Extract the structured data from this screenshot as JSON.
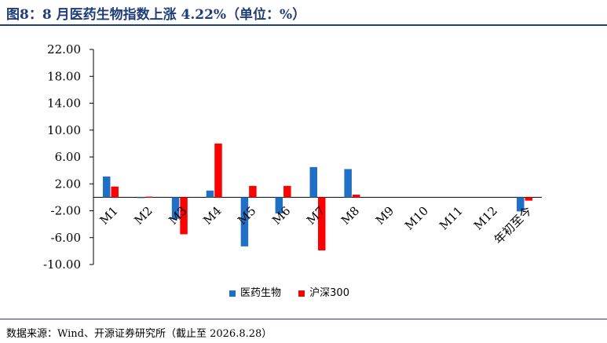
{
  "header": {
    "title": "图8：8 月医药生物指数上涨 4.22%（单位：%）"
  },
  "footer": {
    "source": "数据来源：Wind、开源证券研究所（截止至 2026.8.28）"
  },
  "chart_data": {
    "type": "bar",
    "categories": [
      "M1",
      "M2",
      "M3",
      "M4",
      "M5",
      "M6",
      "M7",
      "M8",
      "M9",
      "M10",
      "M11",
      "M12",
      "年初至今"
    ],
    "series": [
      {
        "name": "医药生物",
        "color": "#1f6fc5",
        "values": [
          3.1,
          -0.1,
          -3.2,
          1.0,
          -7.3,
          -2.4,
          4.5,
          4.2,
          null,
          null,
          null,
          null,
          -2.1
        ]
      },
      {
        "name": "沪深300",
        "color": "#ff0000",
        "values": [
          1.6,
          0.1,
          -5.5,
          8.0,
          1.7,
          1.7,
          -7.9,
          0.4,
          null,
          null,
          null,
          null,
          -0.5
        ]
      }
    ],
    "ylim": [
      -10,
      22
    ],
    "yticks": [
      22.0,
      18.0,
      14.0,
      10.0,
      6.0,
      2.0,
      -2.0,
      -6.0,
      -10.0
    ],
    "ytick_labels": [
      "22.00",
      "18.00",
      "14.00",
      "10.00",
      "6.00",
      "2.00",
      "-2.00",
      "-6.00",
      "-10.00"
    ],
    "legend_position": "bottom",
    "grid": false
  }
}
